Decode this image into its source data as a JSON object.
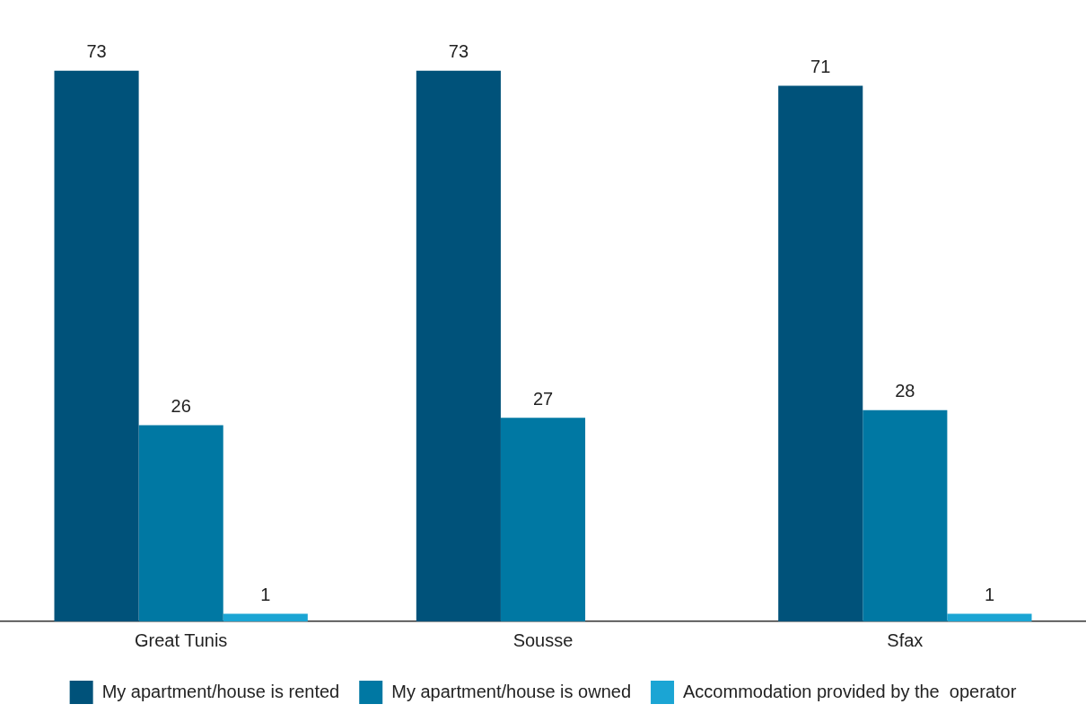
{
  "chart_data": {
    "type": "bar",
    "categories": [
      "Great Tunis",
      "Sousse",
      "Sfax"
    ],
    "series": [
      {
        "name": "My apartment/house is rented",
        "color": "#00527a",
        "values": [
          73,
          73,
          71
        ]
      },
      {
        "name": "My apartment/house is owned",
        "color": "#0078a3",
        "values": [
          26,
          27,
          28
        ]
      },
      {
        "name": "Accommodation provided by the  operator",
        "color": "#1ba5d4",
        "values": [
          1,
          null,
          1
        ]
      }
    ],
    "data_labels": true,
    "legend": "bottom",
    "grid": false,
    "tick_labels": "x"
  }
}
